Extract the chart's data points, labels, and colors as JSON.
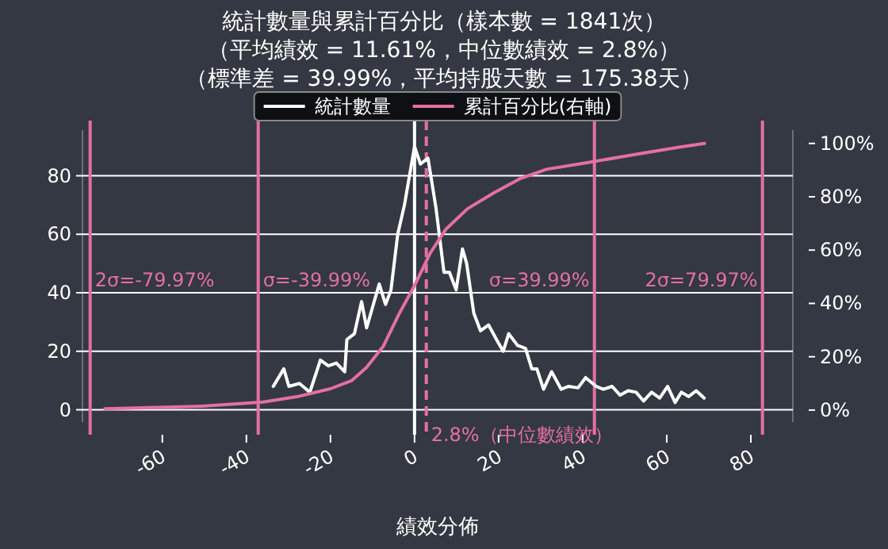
{
  "chart_data": {
    "type": "line",
    "title": "統計數量與累計百分比（樣本數 = 1841次）",
    "subtitle": "（平均績效 = 11.61%，中位數績效 = 2.8%）",
    "xlabel": "績效分佈",
    "annotations": [
      "（標準差 = 39.99%，平均持股天數 = 175.38天）",
      {
        "text": "2σ=-79.97%",
        "x": -77.17,
        "y": 40
      },
      {
        "text": "σ=-39.99%",
        "x": -37.19,
        "y": 40
      },
      {
        "text": "σ=39.99%",
        "x": 42.79,
        "y": 40
      },
      {
        "text": "2σ=79.97%",
        "x": 82.77,
        "y": 40
      }
    ],
    "xlim": [
      -79,
      90
    ],
    "xticks": [
      -60,
      -40,
      -20,
      0,
      20,
      40,
      60,
      80
    ],
    "ylim": [
      -4.2,
      95.6
    ],
    "yticks": [
      0,
      20,
      40,
      60,
      80
    ],
    "y2lim": [
      -4.5,
      105
    ],
    "y2ticks": [
      {
        "value": 0,
        "label": "0%"
      },
      {
        "value": 20,
        "label": "20%"
      },
      {
        "value": 40,
        "label": "40%"
      },
      {
        "value": 60,
        "label": "60%"
      },
      {
        "value": 80,
        "label": "80%"
      },
      {
        "value": 100,
        "label": "100%"
      }
    ],
    "grid": "y",
    "legend": "top",
    "line_style": "solid",
    "series": [
      {
        "name": "統計數量",
        "color": "#ffffff",
        "x": [
          -33.6,
          -31.1,
          -29.9,
          -27.4,
          -24.9,
          -22.4,
          -20.5,
          -18.6,
          -16.6,
          -16.1,
          -14.3,
          -12.6,
          -11.4,
          -8.4,
          -6.9,
          -5.6,
          -4.0,
          -2.4,
          0,
          1.4,
          3.2,
          5.1,
          7.0,
          8.3,
          9.9,
          11.4,
          12.4,
          14.1,
          15.7,
          17.6,
          19.5,
          21.1,
          22.4,
          24.5,
          26.4,
          27.9,
          29.1,
          30.7,
          32.6,
          34.9,
          36.6,
          38.9,
          40.7,
          43.2,
          44.9,
          47.0,
          48.9,
          50.8,
          52.7,
          54.5,
          56.4,
          58.3,
          60.2,
          62.0,
          63.5,
          65.2,
          67.0,
          68.9
        ],
        "values": [
          8,
          14,
          8,
          9,
          6,
          17,
          15,
          16,
          13,
          24,
          26,
          37,
          28,
          43,
          36,
          41,
          60,
          70,
          90,
          84,
          86,
          69,
          47,
          47,
          41,
          55,
          50,
          33,
          27,
          29,
          24,
          20,
          26,
          22,
          21,
          14,
          14,
          7,
          13,
          7,
          8,
          7.5,
          11,
          8,
          7,
          8,
          5,
          6.5,
          6,
          3,
          6,
          4,
          8,
          2.5,
          6,
          4.5,
          6.5,
          4
        ]
      },
      {
        "name": "累計百分比(右軸)",
        "color": "#e46fa4",
        "axis": "y2",
        "x": [
          -73.7,
          -50,
          -36,
          -28,
          -20,
          -15,
          -11.4,
          -7.4,
          -3.7,
          0,
          3.7,
          7.5,
          12.6,
          18.9,
          25.1,
          31.4,
          41.4,
          52.7,
          62.7,
          69
        ],
        "values": [
          0.5,
          1.5,
          3,
          5,
          8,
          11,
          16,
          24,
          36,
          46.7,
          58.8,
          67.9,
          75.5,
          81.5,
          86.8,
          90.3,
          92.9,
          95.9,
          98.5,
          100
        ]
      }
    ],
    "ref_lines": [
      {
        "axis": "x",
        "value": -77.17,
        "color": "#e46fa4",
        "line_style": "solid"
      },
      {
        "axis": "x",
        "value": -37.19,
        "color": "#e46fa4",
        "line_style": "solid"
      },
      {
        "axis": "x",
        "value": 42.79,
        "color": "#e46fa4",
        "line_style": "solid"
      },
      {
        "axis": "x",
        "value": 82.77,
        "color": "#e46fa4",
        "line_style": "solid"
      },
      {
        "axis": "x",
        "value": 0,
        "color": "#ffffff",
        "line_style": "solid"
      },
      {
        "axis": "x",
        "value": 2.8,
        "label": "2.8%（中位數績效）",
        "color": "#e46fa4",
        "line_style": "dashed"
      }
    ]
  }
}
